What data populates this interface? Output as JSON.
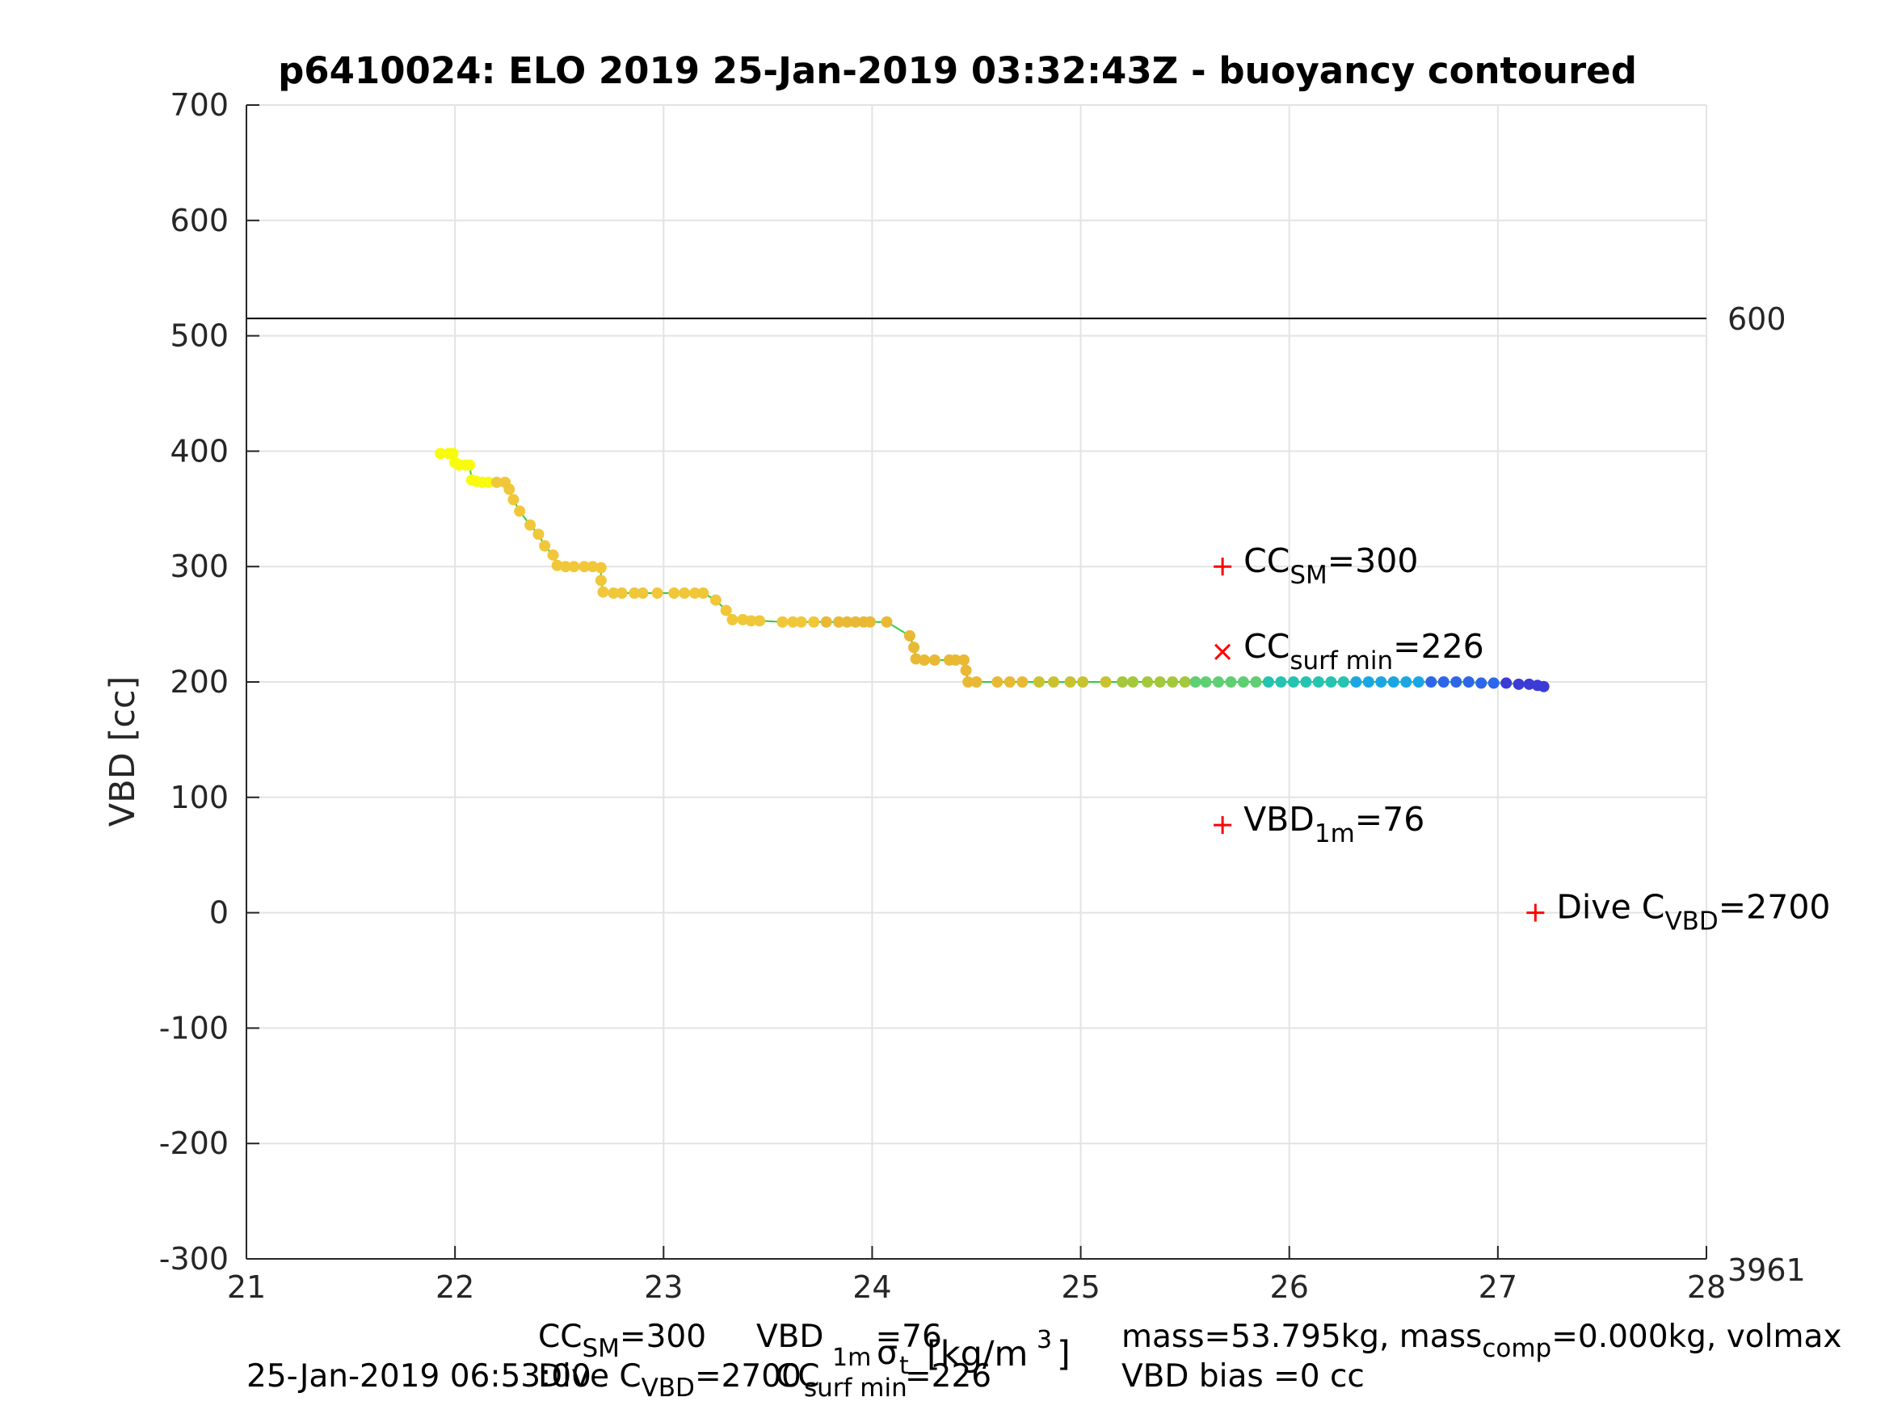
{
  "chart_data": {
    "type": "scatter",
    "title": "p6410024: ELO 2019 25-Jan-2019 03:32:43Z - buoyancy contoured",
    "xlabel": "σ_1m,t [kg/m³]",
    "xlabel_parts": {
      "main": "σ",
      "sub": "1m",
      "sub2": "t",
      "unit": "[kg/m",
      "sup": "3",
      "close": "]"
    },
    "ylabel": "VBD [cc]",
    "xlim": [
      21,
      28
    ],
    "ylim": [
      -300,
      700
    ],
    "xticks": [
      "21",
      "22",
      "23",
      "24",
      "25",
      "26",
      "27",
      "28"
    ],
    "yticks": [
      "700",
      "600",
      "500",
      "400",
      "300",
      "200",
      "100",
      "0",
      "-100",
      "-200",
      "-300"
    ],
    "grid": true,
    "right_axis_labels": [
      {
        "value_y": 515,
        "label": "600"
      },
      {
        "value_y": -300,
        "label": "3961"
      }
    ],
    "reference_line_y": 515,
    "series": [
      {
        "color_scale": "buoyancy",
        "points": [
          [
            21.93,
            398
          ],
          [
            21.97,
            398
          ],
          [
            21.99,
            398
          ],
          [
            22.0,
            390
          ],
          [
            22.02,
            388
          ],
          [
            22.05,
            388
          ],
          [
            22.07,
            388
          ],
          [
            22.08,
            375
          ],
          [
            22.1,
            374
          ],
          [
            22.13,
            373
          ],
          [
            22.16,
            373
          ],
          [
            22.2,
            373
          ],
          [
            22.24,
            373
          ],
          [
            22.26,
            367
          ],
          [
            22.28,
            358
          ],
          [
            22.31,
            348
          ],
          [
            22.36,
            336
          ],
          [
            22.4,
            328
          ],
          [
            22.43,
            318
          ],
          [
            22.47,
            310
          ],
          [
            22.49,
            301
          ],
          [
            22.53,
            300
          ],
          [
            22.57,
            300
          ],
          [
            22.62,
            300
          ],
          [
            22.66,
            300
          ],
          [
            22.7,
            299
          ],
          [
            22.7,
            288
          ],
          [
            22.71,
            278
          ],
          [
            22.76,
            277
          ],
          [
            22.8,
            277
          ],
          [
            22.86,
            277
          ],
          [
            22.9,
            277
          ],
          [
            22.97,
            277
          ],
          [
            23.05,
            277
          ],
          [
            23.1,
            277
          ],
          [
            23.15,
            277
          ],
          [
            23.19,
            277
          ],
          [
            23.25,
            271
          ],
          [
            23.3,
            262
          ],
          [
            23.33,
            254
          ],
          [
            23.38,
            254
          ],
          [
            23.42,
            253
          ],
          [
            23.46,
            253
          ],
          [
            23.57,
            252
          ],
          [
            23.62,
            252
          ],
          [
            23.66,
            252
          ],
          [
            23.72,
            252
          ],
          [
            23.78,
            252
          ],
          [
            23.84,
            252
          ],
          [
            23.88,
            252
          ],
          [
            23.92,
            252
          ],
          [
            23.96,
            252
          ],
          [
            23.99,
            252
          ],
          [
            24.07,
            252
          ],
          [
            24.18,
            240
          ],
          [
            24.2,
            230
          ],
          [
            24.21,
            220
          ],
          [
            24.25,
            219
          ],
          [
            24.3,
            219
          ],
          [
            24.37,
            219
          ],
          [
            24.4,
            219
          ],
          [
            24.44,
            219
          ],
          [
            24.45,
            210
          ],
          [
            24.46,
            200
          ],
          [
            24.5,
            200
          ],
          [
            24.6,
            200
          ],
          [
            24.66,
            200
          ],
          [
            24.72,
            200
          ],
          [
            24.8,
            200
          ],
          [
            24.87,
            200
          ],
          [
            24.95,
            200
          ],
          [
            25.01,
            200
          ],
          [
            25.12,
            200
          ],
          [
            25.2,
            200
          ],
          [
            25.25,
            200
          ],
          [
            25.32,
            200
          ],
          [
            25.38,
            200
          ],
          [
            25.44,
            200
          ],
          [
            25.5,
            200
          ],
          [
            25.55,
            200
          ],
          [
            25.6,
            200
          ],
          [
            25.66,
            200
          ],
          [
            25.72,
            200
          ],
          [
            25.78,
            200
          ],
          [
            25.84,
            200
          ],
          [
            25.9,
            200
          ],
          [
            25.96,
            200
          ],
          [
            26.02,
            200
          ],
          [
            26.08,
            200
          ],
          [
            26.14,
            200
          ],
          [
            26.2,
            200
          ],
          [
            26.26,
            200
          ],
          [
            26.32,
            200
          ],
          [
            26.38,
            200
          ],
          [
            26.44,
            200
          ],
          [
            26.5,
            200
          ],
          [
            26.56,
            200
          ],
          [
            26.62,
            200
          ],
          [
            26.68,
            200
          ],
          [
            26.74,
            200
          ],
          [
            26.8,
            200
          ],
          [
            26.86,
            200
          ],
          [
            26.92,
            199
          ],
          [
            26.98,
            199
          ],
          [
            27.04,
            199
          ],
          [
            27.1,
            198
          ],
          [
            27.15,
            198
          ],
          [
            27.19,
            197
          ],
          [
            27.22,
            196
          ]
        ]
      }
    ],
    "annotations": [
      {
        "marker": "+",
        "x": 25.68,
        "y": 300,
        "text": "CC",
        "sub": "SM",
        "suffix": "=300"
      },
      {
        "marker": "x",
        "x": 25.68,
        "y": 226,
        "text": "CC",
        "sub": "surf min",
        "suffix": "=226"
      },
      {
        "marker": "+",
        "x": 25.68,
        "y": 76,
        "text": "VBD",
        "sub": "1m",
        "suffix": "=76"
      },
      {
        "marker": "+",
        "x": 27.18,
        "y": 0,
        "text": "Dive C",
        "sub": "VBD",
        "suffix": "=2700"
      }
    ],
    "colors": {
      "line": "#2ecc40",
      "marker": "#ff0000",
      "grid": "#e3e3e3",
      "scale": [
        "#f9fb0e",
        "#f1c73a",
        "#e9b935",
        "#c9c230",
        "#a5c73b",
        "#60ce73",
        "#25c3b0",
        "#1aa6e2",
        "#2e66ea",
        "#3c3bd6"
      ]
    }
  },
  "footer": {
    "line1_left": "CC",
    "line1_left_sub": "SM",
    "line1_left_suffix": "=300",
    "line1_mid": "VBD",
    "line1_mid_sub": "1m",
    "line1_mid_suffix": "=76",
    "line1_right": "mass=53.795kg, mass",
    "line1_right_sub": "comp",
    "line1_right_suffix": "=0.000kg, volmax",
    "line2_date": "25-Jan-2019 06:53:00",
    "line2_left": "Dive C",
    "line2_left_sub": "VBD",
    "line2_left_suffix": "=2700",
    "line2_mid": "CC",
    "line2_mid_sub": "surf min",
    "line2_mid_suffix": "=226",
    "line2_right": "VBD bias =0 cc"
  }
}
